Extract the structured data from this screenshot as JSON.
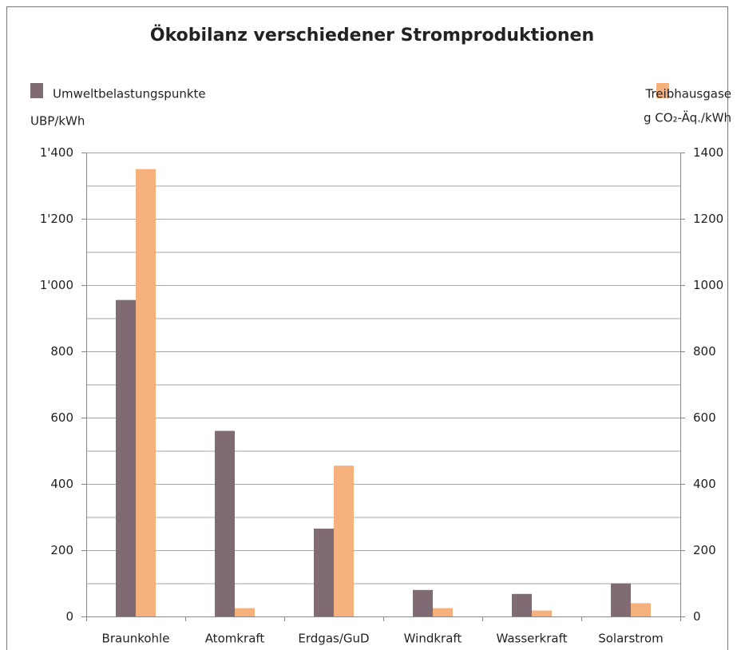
{
  "chart_data": {
    "type": "bar",
    "title": "Ökobilanz verschiedener Stromproduktionen",
    "ylabel": "UBP/kWh",
    "y2label": "g CO₂-Äq./kWh",
    "categories": [
      "Braunkohle",
      "Atomkraft",
      "Erdgas/GuD",
      "Windkraft",
      "Wasserkraft",
      "Solarstrom"
    ],
    "series": [
      {
        "name": "Umweltbelastungspunkte",
        "color": "#806b75",
        "values": [
          955,
          560,
          265,
          80,
          68,
          100
        ]
      },
      {
        "name": "Treibhausgase",
        "color": "#f5b07b",
        "axis": "y2",
        "values": [
          1350,
          25,
          455,
          25,
          18,
          40
        ]
      }
    ],
    "ylim": [
      0,
      1400
    ],
    "yticks": [
      0,
      200,
      400,
      600,
      800,
      {
        "value": 1000,
        "label": "1'000"
      },
      {
        "value": 1200,
        "label": "1'200"
      },
      {
        "value": 1400,
        "label": "1'400"
      }
    ],
    "y_minor_ticks": [
      100,
      300,
      500,
      700,
      900,
      1100,
      1300
    ],
    "y2lim": [
      0,
      1400
    ],
    "y2ticks": [
      0,
      200,
      400,
      600,
      800,
      1000,
      1200,
      1400
    ],
    "grid": true
  }
}
